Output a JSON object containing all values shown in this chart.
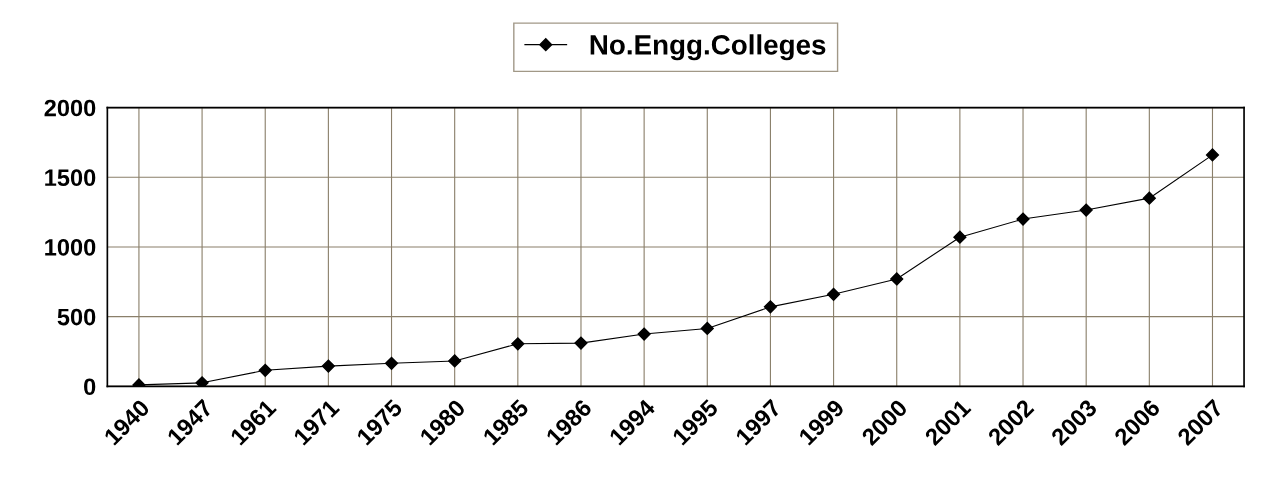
{
  "chart_data": {
    "type": "line",
    "categories": [
      "1940",
      "1947",
      "1961",
      "1971",
      "1975",
      "1980",
      "1985",
      "1986",
      "1994",
      "1995",
      "1997",
      "1999",
      "2000",
      "2001",
      "2002",
      "2003",
      "2006",
      "2007"
    ],
    "series": [
      {
        "name": "No.Engg.Colleges",
        "color": "#000000",
        "values": [
          10,
          25,
          115,
          145,
          165,
          182,
          305,
          310,
          375,
          415,
          570,
          660,
          770,
          1070,
          1200,
          1265,
          1350,
          1660
        ]
      }
    ],
    "ylim": [
      0,
      2000
    ],
    "yticks": [
      0,
      500,
      1000,
      1500,
      2000
    ],
    "grid": true,
    "legend": "top",
    "marker": "diamond",
    "line_style": "solid"
  }
}
